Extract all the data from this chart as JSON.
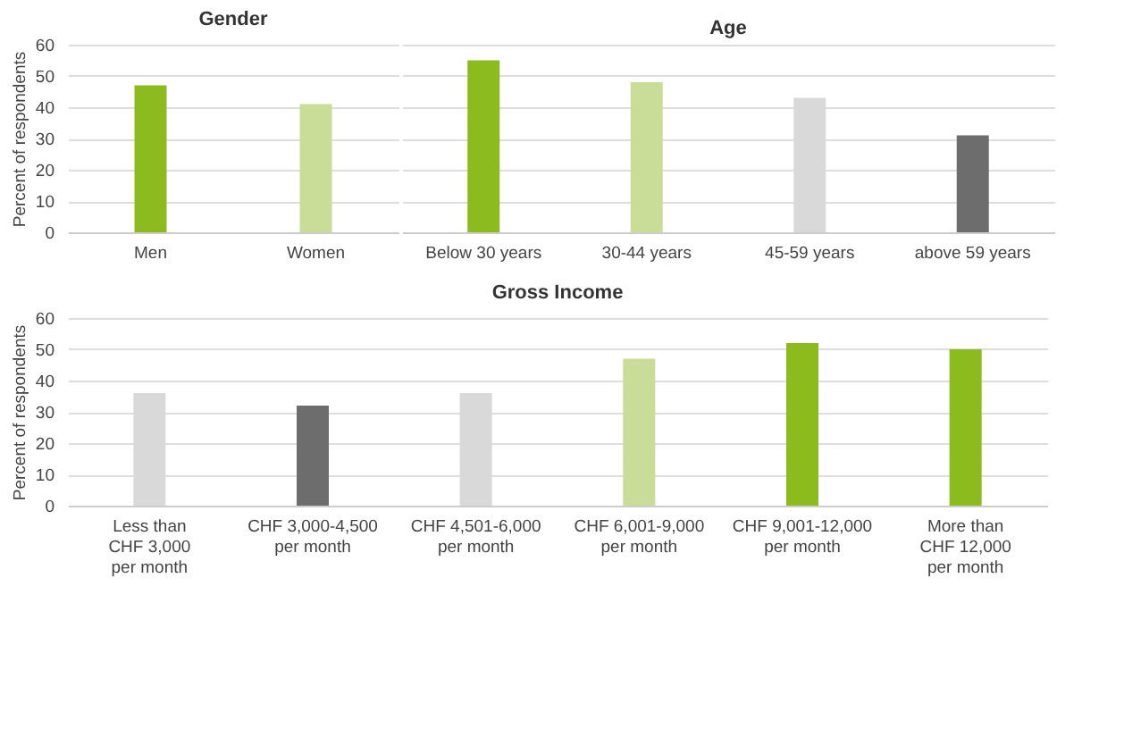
{
  "chart_data": [
    {
      "type": "bar",
      "title": "Gender",
      "ylabel": "Percent of respondents",
      "categories": [
        "Men",
        "Women"
      ],
      "values": [
        47,
        41
      ],
      "colors": [
        "#8cbb1e",
        "#cadd98"
      ],
      "ylim": [
        0,
        60
      ],
      "yticks": [
        0,
        10,
        20,
        30,
        40,
        50,
        60
      ],
      "grid": "y"
    },
    {
      "type": "bar",
      "title": "Age",
      "categories": [
        "Below 30 years",
        "30-44 years",
        "45-59 years",
        "above 59 years"
      ],
      "values": [
        55,
        48,
        43,
        31
      ],
      "colors": [
        "#8cbb1e",
        "#cadd98",
        "#d9d9d9",
        "#6d6d6d"
      ],
      "ylim": [
        0,
        60
      ],
      "yticks": [
        0,
        10,
        20,
        30,
        40,
        50,
        60
      ],
      "grid": "y",
      "tick_labels": "x"
    },
    {
      "type": "bar",
      "title": "Gross Income",
      "ylabel": "Percent of respondents",
      "categories": [
        "Less than\nCHF 3,000\nper month",
        "CHF 3,000-4,500\nper month",
        "CHF 4,501-6,000\nper month",
        "CHF 6,001-9,000\nper month",
        "CHF 9,001-12,000\nper month",
        "More than\nCHF 12,000\nper month"
      ],
      "values": [
        36,
        32,
        36,
        47,
        52,
        50
      ],
      "colors": [
        "#d9d9d9",
        "#6d6d6d",
        "#d9d9d9",
        "#cadd98",
        "#8cbb1e",
        "#8cbb1e"
      ],
      "ylim": [
        0,
        60
      ],
      "yticks": [
        0,
        10,
        20,
        30,
        40,
        50,
        60
      ],
      "grid": "y"
    }
  ]
}
